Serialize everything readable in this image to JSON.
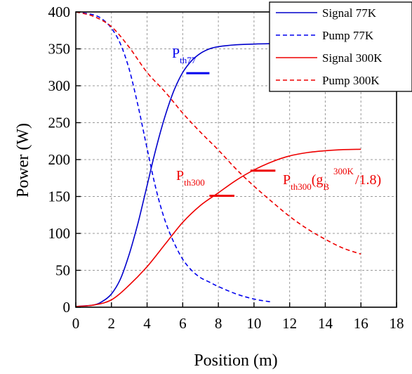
{
  "chart_data": {
    "type": "line",
    "xlabel": "Position (m)",
    "ylabel": "Power (W)",
    "xlim": [
      0,
      18
    ],
    "ylim": [
      0,
      400
    ],
    "xticks": [
      0,
      2,
      4,
      6,
      8,
      10,
      12,
      14,
      16,
      18
    ],
    "yticks": [
      0,
      50,
      100,
      150,
      200,
      250,
      300,
      350,
      400
    ],
    "grid": true,
    "legend_position": "top-right",
    "series": [
      {
        "name": "Signal 77K",
        "color": "#0000cc",
        "dash": "solid",
        "x": [
          0,
          1,
          1.5,
          2,
          2.5,
          3,
          3.5,
          4,
          4.5,
          5,
          5.5,
          6,
          6.5,
          7,
          7.5,
          8,
          9,
          10,
          11
        ],
        "y": [
          1,
          3,
          8,
          18,
          38,
          72,
          115,
          165,
          215,
          258,
          293,
          318,
          334,
          344,
          350,
          353,
          355.5,
          356.5,
          357
        ]
      },
      {
        "name": "Pump 77K",
        "color": "#0000ee",
        "dash": "dashed",
        "x": [
          0,
          1,
          1.5,
          2,
          2.5,
          3,
          3.5,
          4,
          4.5,
          5,
          5.5,
          6,
          6.5,
          7,
          7.5,
          8,
          9,
          10,
          11
        ],
        "y": [
          400,
          396,
          390,
          378,
          357,
          322,
          272,
          215,
          160,
          118,
          88,
          65,
          50,
          40,
          34,
          28,
          18,
          11,
          7
        ]
      },
      {
        "name": "Signal 300K",
        "color": "#ee0000",
        "dash": "solid",
        "x": [
          0,
          1,
          2,
          3,
          4,
          5,
          6,
          7,
          8,
          9,
          10,
          11,
          12,
          13,
          14,
          15,
          16
        ],
        "y": [
          1,
          3,
          10,
          30,
          55,
          85,
          115,
          138,
          155,
          172,
          186,
          197,
          205,
          209.5,
          212,
          213.5,
          214
        ]
      },
      {
        "name": "Pump 300K",
        "color": "#ee0000",
        "dash": "dashed",
        "x": [
          0,
          1,
          2,
          3,
          4,
          5,
          6,
          7,
          8,
          9,
          10,
          11,
          12,
          13,
          14,
          15,
          16
        ],
        "y": [
          400,
          394,
          380,
          352,
          318,
          292,
          263,
          237,
          213,
          187,
          164,
          143,
          123,
          106,
          92,
          80,
          72
        ]
      }
    ],
    "annotations": [
      {
        "main": "P",
        "sub": "th77",
        "tail": "",
        "sup": "",
        "color": "#0000ee"
      },
      {
        "main": "P",
        "sub": "th300",
        "tail": "",
        "sup": "",
        "color": "#ee0000"
      },
      {
        "main": "P",
        "sub": "th300",
        "tail": "(g",
        "sub2": "B",
        "sup": "300K",
        "end": "/1.8)",
        "color": "#ee0000"
      }
    ],
    "threshold_marks": [
      {
        "x": [
          6.2,
          7.5
        ],
        "y": 317,
        "color": "#0000ee"
      },
      {
        "x": [
          7.5,
          8.9
        ],
        "y": 151,
        "color": "#ee0000"
      },
      {
        "x": [
          9.8,
          11.2
        ],
        "y": 185,
        "color": "#ee0000"
      }
    ]
  }
}
